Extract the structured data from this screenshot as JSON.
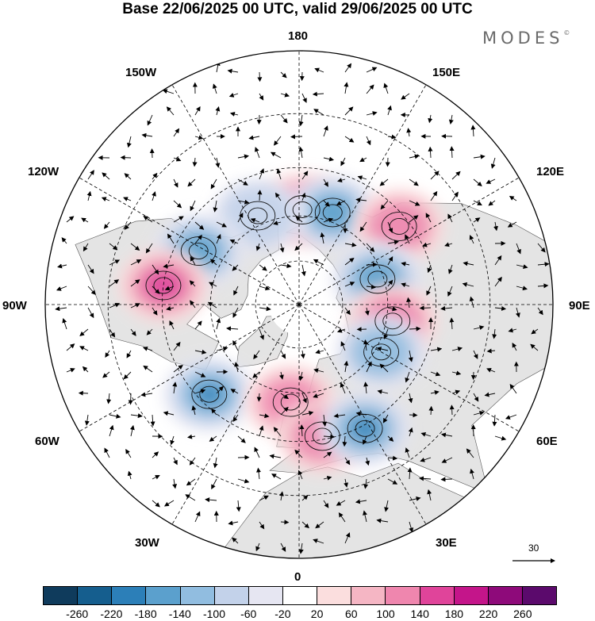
{
  "title": "Base 22/06/2025 00 UTC, valid 29/06/2025 00 UTC",
  "brand": {
    "text": "MODES",
    "mark": "©"
  },
  "longitude_labels": {
    "lon_180": "180",
    "lon_150e": "150E",
    "lon_120e": "120E",
    "lon_90e": "90E",
    "lon_60e": "60E",
    "lon_30e": "30E",
    "lon_0": "0",
    "lon_30w": "30W",
    "lon_60w": "60W",
    "lon_90w": "90W",
    "lon_120w": "120W",
    "lon_150w": "150W"
  },
  "reference_vector": {
    "label": "30"
  },
  "colorbar": {
    "colors": [
      "#0f3b5c",
      "#155e8e",
      "#2c7fb8",
      "#5ba0cd",
      "#91bde0",
      "#c3d2ea",
      "#e6e6f2",
      "#ffffff",
      "#fbdede",
      "#f5b6c4",
      "#ef86ae",
      "#e0449a",
      "#c4158a",
      "#8e0a7a",
      "#5b0a6c"
    ],
    "tick_labels": [
      "-260",
      "-220",
      "-180",
      "-140",
      "-100",
      "-60",
      "-20",
      "20",
      "60",
      "100",
      "140",
      "180",
      "220",
      "260"
    ]
  },
  "map": {
    "projection": "north-polar-stereographic",
    "anomaly_centers": [
      {
        "sign": "positive",
        "level": 4,
        "lon": 178,
        "lat": 58
      },
      {
        "sign": "negative",
        "level": 3,
        "lon": 160,
        "lat": 57
      },
      {
        "sign": "negative",
        "level": 1,
        "lon": 205,
        "lat": 57
      },
      {
        "sign": "positive",
        "level": 2,
        "lon": 128,
        "lat": 48
      },
      {
        "sign": "negative",
        "level": 3,
        "lon": 108,
        "lat": 62
      },
      {
        "sign": "positive",
        "level": 2,
        "lon": 80,
        "lat": 58
      },
      {
        "sign": "negative",
        "level": 2,
        "lon": 60,
        "lat": 58
      },
      {
        "sign": "negative",
        "level": 3,
        "lon": 242,
        "lat": 52
      },
      {
        "sign": "positive",
        "level": 3,
        "lon": 262,
        "lat": 45
      },
      {
        "sign": "negative",
        "level": 4,
        "lon": 315,
        "lat": 48
      },
      {
        "sign": "positive",
        "level": 2,
        "lon": 355,
        "lat": 57
      },
      {
        "sign": "positive",
        "level": 2,
        "lon": 10,
        "lat": 46
      },
      {
        "sign": "negative",
        "level": 4,
        "lon": 28,
        "lat": 44
      }
    ]
  }
}
